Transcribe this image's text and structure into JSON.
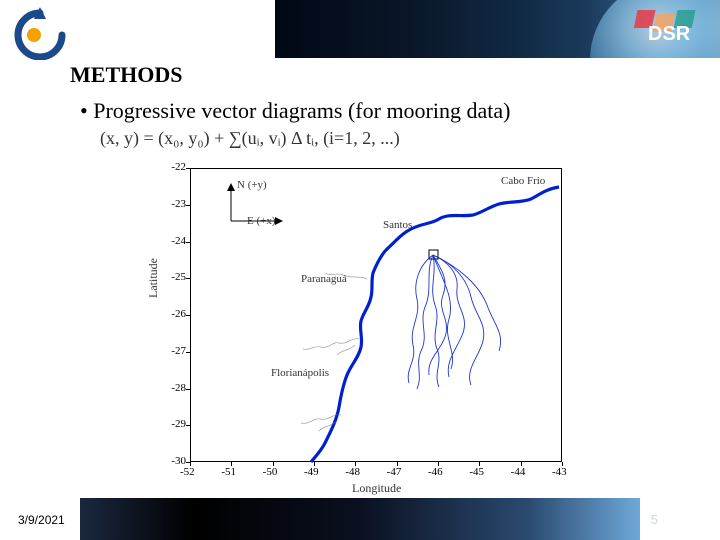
{
  "header": {
    "section_title": "METHODS",
    "dsr_text": "DSR",
    "dsr_colors": [
      "#e63946",
      "#f4a261",
      "#2a9d8f"
    ]
  },
  "content": {
    "bullet": "• Progressive vector diagrams (for mooring data)",
    "formula": "(x, y) = (x₀, y₀) + ∑(uᵢ, vᵢ) Δ tᵢ, (i=1, 2, ...)"
  },
  "plot": {
    "y_label": "Latitude",
    "x_label": "Longitude",
    "y_ticks": [
      -22,
      -23,
      -24,
      -25,
      -26,
      -27,
      -28,
      -29,
      -30
    ],
    "x_ticks": [
      -52,
      -51,
      -50,
      -49,
      -48,
      -47,
      -46,
      -45,
      -44,
      -43
    ],
    "xlim": [
      -52,
      -43
    ],
    "ylim": [
      -30,
      -22
    ],
    "labels": {
      "santos": "Santos",
      "paranagua": "Paranaguá",
      "florianopolis": "Florianápolis",
      "cabo_frio": "Cabo Frio",
      "n_arrow": "N (+y)",
      "e_arrow": "E (+x)"
    },
    "coastline_color": "#0020d0",
    "pvd_color": "#0020d0",
    "aux_color": "#666666"
  },
  "footer": {
    "date": "3/9/2021",
    "page": "5"
  }
}
